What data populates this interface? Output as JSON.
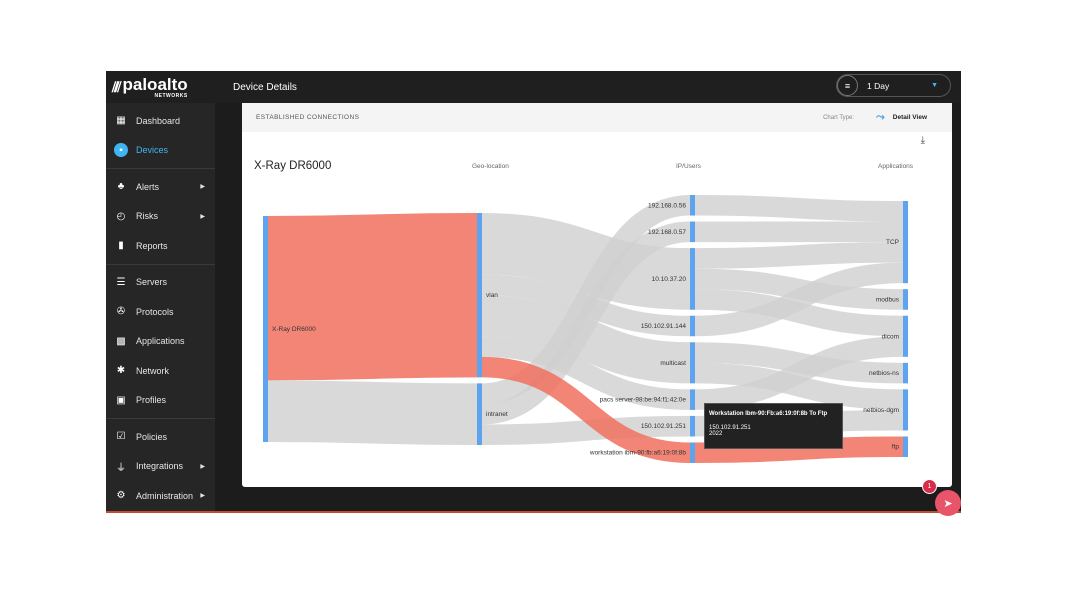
{
  "brand": {
    "name": "paloalto",
    "sub": "NETWORKS"
  },
  "sidebar": {
    "groups": [
      [
        {
          "label": "Dashboard",
          "icon": "dashboard-icon",
          "glyph": "▦"
        },
        {
          "label": "Devices",
          "icon": "devices-icon",
          "glyph": "▪",
          "active": true
        }
      ],
      [
        {
          "label": "Alerts",
          "icon": "alert-icon",
          "glyph": "♣",
          "arrow": true
        },
        {
          "label": "Risks",
          "icon": "gauge-icon",
          "glyph": "◴",
          "arrow": true
        },
        {
          "label": "Reports",
          "icon": "reports-icon",
          "glyph": "▮"
        }
      ],
      [
        {
          "label": "Servers",
          "icon": "servers-icon",
          "glyph": "☰"
        },
        {
          "label": "Protocols",
          "icon": "protocols-icon",
          "glyph": "✇"
        },
        {
          "label": "Applications",
          "icon": "applications-icon",
          "glyph": "▩"
        },
        {
          "label": "Network",
          "icon": "network-icon",
          "glyph": "✱"
        },
        {
          "label": "Profiles",
          "icon": "profiles-icon",
          "glyph": "▣"
        }
      ],
      [
        {
          "label": "Policies",
          "icon": "policies-icon",
          "glyph": "☑"
        },
        {
          "label": "Integrations",
          "icon": "plug-icon",
          "glyph": "⏚",
          "arrow": true
        },
        {
          "label": "Administration",
          "icon": "gear-icon",
          "glyph": "⚙",
          "arrow": true
        }
      ]
    ]
  },
  "header": {
    "title": "Device Details",
    "range": "1 Day"
  },
  "card": {
    "section": "ESTABLISHED CONNECTIONS",
    "chart_type_label": "Chart Type:",
    "view": "Detail View",
    "title": "X-Ray DR6000",
    "columns": [
      "Geo-location",
      "IP/Users",
      "Applications"
    ]
  },
  "tooltip": {
    "title": "Workstation Ibm-90:Fb:a6:19:0f:8b To Ftp",
    "line1": "150.102.91.251",
    "line2": "2022"
  },
  "notifications": {
    "count": "1"
  },
  "colors": {
    "flow": "#cfcfcf",
    "highlight": "#f0705e",
    "node": "#5ea3ee",
    "accent": "#3fb6f2"
  },
  "chart_data": {
    "type": "sankey",
    "nodes": [
      {
        "id": "xray",
        "label": "X-Ray DR6000",
        "col": 0
      },
      {
        "id": "vlan",
        "label": "vlan",
        "col": 1
      },
      {
        "id": "intranet",
        "label": "intranet",
        "col": 1
      },
      {
        "id": "ip56",
        "label": "192.168.0.56",
        "col": 2
      },
      {
        "id": "ip57",
        "label": "192.168.0.57",
        "col": 2
      },
      {
        "id": "ip20",
        "label": "10.10.37.20",
        "col": 2
      },
      {
        "id": "ip144",
        "label": "150.102.91.144",
        "col": 2
      },
      {
        "id": "mc",
        "label": "multicast",
        "col": 2
      },
      {
        "id": "pacs",
        "label": "pacs server-98:be:94:f1:42:0e",
        "col": 2
      },
      {
        "id": "ip251",
        "label": "150.102.91.251",
        "col": 2
      },
      {
        "id": "ws",
        "label": "workstation ibm-90:fb:a6:19:0f:8b",
        "col": 2
      },
      {
        "id": "tcp",
        "label": "TCP",
        "col": 3
      },
      {
        "id": "modbus",
        "label": "modbus",
        "col": 3
      },
      {
        "id": "dicom",
        "label": "dicom",
        "col": 3
      },
      {
        "id": "nbns",
        "label": "netbios-ns",
        "col": 3
      },
      {
        "id": "nbdgm",
        "label": "netbios-dgm",
        "col": 3
      },
      {
        "id": "ftp",
        "label": "ftp",
        "col": 3
      }
    ],
    "links": [
      {
        "s": "xray",
        "t": "vlan",
        "v": 8,
        "hl": true
      },
      {
        "s": "xray",
        "t": "intranet",
        "v": 3
      },
      {
        "s": "vlan",
        "t": "ip20",
        "v": 3
      },
      {
        "s": "vlan",
        "t": "ip144",
        "v": 1
      },
      {
        "s": "vlan",
        "t": "mc",
        "v": 2
      },
      {
        "s": "vlan",
        "t": "pacs",
        "v": 1
      },
      {
        "s": "vlan",
        "t": "ws",
        "v": 1,
        "hl": true
      },
      {
        "s": "intranet",
        "t": "ip56",
        "v": 1
      },
      {
        "s": "intranet",
        "t": "ip57",
        "v": 1
      },
      {
        "s": "intranet",
        "t": "ip251",
        "v": 1
      },
      {
        "s": "ip56",
        "t": "tcp",
        "v": 1
      },
      {
        "s": "ip57",
        "t": "tcp",
        "v": 1
      },
      {
        "s": "ip20",
        "t": "tcp",
        "v": 1
      },
      {
        "s": "ip20",
        "t": "modbus",
        "v": 1
      },
      {
        "s": "ip20",
        "t": "dicom",
        "v": 1
      },
      {
        "s": "ip144",
        "t": "tcp",
        "v": 1
      },
      {
        "s": "mc",
        "t": "nbns",
        "v": 1
      },
      {
        "s": "mc",
        "t": "nbdgm",
        "v": 1
      },
      {
        "s": "pacs",
        "t": "dicom",
        "v": 1
      },
      {
        "s": "ip251",
        "t": "nbdgm",
        "v": 1
      },
      {
        "s": "ws",
        "t": "ftp",
        "v": 1,
        "hl": true
      }
    ]
  }
}
